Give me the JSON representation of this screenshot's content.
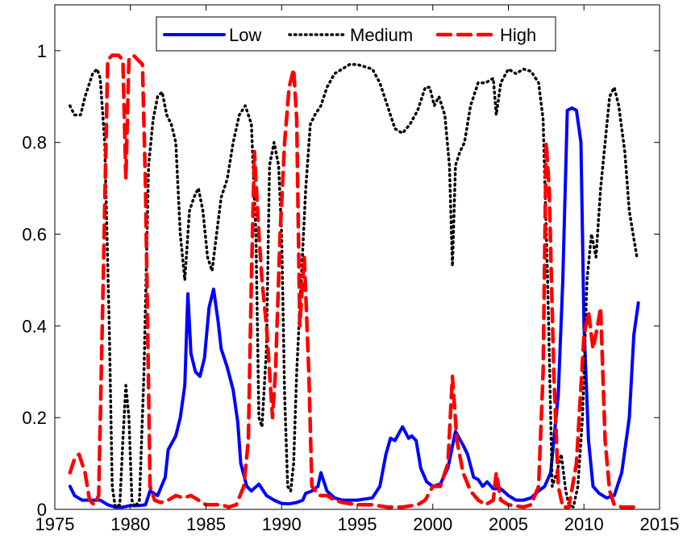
{
  "chart_data": {
    "type": "line",
    "title": "",
    "xlabel": "",
    "ylabel": "",
    "xlim": [
      1975,
      2015
    ],
    "ylim": [
      0,
      1.1
    ],
    "xticks": [
      1975,
      1980,
      1985,
      1990,
      1995,
      2000,
      2005,
      2010,
      2015
    ],
    "yticks": [
      0,
      0.2,
      0.4,
      0.6,
      0.8,
      1
    ],
    "ytick_labels": [
      "0",
      "0.2",
      "0.4",
      "0.6",
      "0.8",
      "1"
    ],
    "grid": false,
    "legend_position": "top-center",
    "series": [
      {
        "name": "Low",
        "color": "#0000ff",
        "style": "solid",
        "points": [
          [
            1976.0,
            0.05
          ],
          [
            1976.3,
            0.03
          ],
          [
            1976.8,
            0.02
          ],
          [
            1977.5,
            0.02
          ],
          [
            1978.0,
            0.02
          ],
          [
            1978.5,
            0.01
          ],
          [
            1979.0,
            0.005
          ],
          [
            1979.5,
            0.005
          ],
          [
            1980.0,
            0.008
          ],
          [
            1980.5,
            0.008
          ],
          [
            1981.0,
            0.01
          ],
          [
            1981.3,
            0.04
          ],
          [
            1981.8,
            0.03
          ],
          [
            1982.3,
            0.07
          ],
          [
            1982.5,
            0.13
          ],
          [
            1983.0,
            0.16
          ],
          [
            1983.3,
            0.2
          ],
          [
            1983.6,
            0.27
          ],
          [
            1983.8,
            0.47
          ],
          [
            1984.0,
            0.34
          ],
          [
            1984.3,
            0.3
          ],
          [
            1984.6,
            0.29
          ],
          [
            1984.9,
            0.33
          ],
          [
            1985.2,
            0.44
          ],
          [
            1985.5,
            0.48
          ],
          [
            1985.8,
            0.41
          ],
          [
            1986.0,
            0.35
          ],
          [
            1986.4,
            0.31
          ],
          [
            1986.8,
            0.26
          ],
          [
            1987.1,
            0.19
          ],
          [
            1987.3,
            0.1
          ],
          [
            1987.7,
            0.05
          ],
          [
            1988.0,
            0.04
          ],
          [
            1988.5,
            0.055
          ],
          [
            1989.0,
            0.03
          ],
          [
            1989.5,
            0.02
          ],
          [
            1990.0,
            0.013
          ],
          [
            1990.5,
            0.012
          ],
          [
            1991.0,
            0.015
          ],
          [
            1991.4,
            0.02
          ],
          [
            1991.6,
            0.035
          ],
          [
            1992.0,
            0.04
          ],
          [
            1992.4,
            0.05
          ],
          [
            1992.6,
            0.08
          ],
          [
            1993.0,
            0.04
          ],
          [
            1993.5,
            0.025
          ],
          [
            1994.0,
            0.02
          ],
          [
            1995.0,
            0.02
          ],
          [
            1996.0,
            0.025
          ],
          [
            1996.5,
            0.05
          ],
          [
            1996.9,
            0.12
          ],
          [
            1997.2,
            0.155
          ],
          [
            1997.5,
            0.15
          ],
          [
            1998.0,
            0.18
          ],
          [
            1998.4,
            0.155
          ],
          [
            1998.6,
            0.16
          ],
          [
            1998.9,
            0.15
          ],
          [
            1999.2,
            0.09
          ],
          [
            1999.6,
            0.06
          ],
          [
            2000.0,
            0.05
          ],
          [
            2000.5,
            0.055
          ],
          [
            2001.0,
            0.09
          ],
          [
            2001.5,
            0.17
          ],
          [
            2002.0,
            0.14
          ],
          [
            2002.3,
            0.12
          ],
          [
            2002.7,
            0.07
          ],
          [
            2003.0,
            0.065
          ],
          [
            2003.3,
            0.05
          ],
          [
            2003.6,
            0.06
          ],
          [
            2004.0,
            0.045
          ],
          [
            2004.5,
            0.045
          ],
          [
            2005.0,
            0.03
          ],
          [
            2005.5,
            0.02
          ],
          [
            2006.0,
            0.02
          ],
          [
            2006.5,
            0.025
          ],
          [
            2007.0,
            0.04
          ],
          [
            2007.4,
            0.05
          ],
          [
            2007.8,
            0.08
          ],
          [
            2008.0,
            0.15
          ],
          [
            2008.3,
            0.25
          ],
          [
            2008.6,
            0.5
          ],
          [
            2008.9,
            0.87
          ],
          [
            2009.2,
            0.875
          ],
          [
            2009.5,
            0.87
          ],
          [
            2009.8,
            0.8
          ],
          [
            2010.0,
            0.4
          ],
          [
            2010.3,
            0.15
          ],
          [
            2010.6,
            0.05
          ],
          [
            2011.0,
            0.035
          ],
          [
            2011.5,
            0.025
          ],
          [
            2012.0,
            0.03
          ],
          [
            2012.5,
            0.08
          ],
          [
            2013.0,
            0.2
          ],
          [
            2013.3,
            0.38
          ],
          [
            2013.6,
            0.45
          ]
        ]
      },
      {
        "name": "Medium",
        "color": "#000000",
        "style": "dotted",
        "points": [
          [
            1976.0,
            0.88
          ],
          [
            1976.3,
            0.86
          ],
          [
            1976.7,
            0.86
          ],
          [
            1977.0,
            0.9
          ],
          [
            1977.5,
            0.95
          ],
          [
            1977.8,
            0.96
          ],
          [
            1978.0,
            0.94
          ],
          [
            1978.3,
            0.8
          ],
          [
            1978.6,
            0.4
          ],
          [
            1978.8,
            0.05
          ],
          [
            1979.0,
            0.005
          ],
          [
            1979.3,
            0.01
          ],
          [
            1979.5,
            0.15
          ],
          [
            1979.7,
            0.27
          ],
          [
            1979.9,
            0.2
          ],
          [
            1980.1,
            0.02
          ],
          [
            1980.3,
            0.005
          ],
          [
            1980.6,
            0.02
          ],
          [
            1980.9,
            0.3
          ],
          [
            1981.2,
            0.75
          ],
          [
            1981.5,
            0.85
          ],
          [
            1981.8,
            0.9
          ],
          [
            1982.1,
            0.91
          ],
          [
            1982.4,
            0.86
          ],
          [
            1982.7,
            0.84
          ],
          [
            1983.0,
            0.8
          ],
          [
            1983.3,
            0.6
          ],
          [
            1983.6,
            0.5
          ],
          [
            1983.9,
            0.65
          ],
          [
            1984.2,
            0.68
          ],
          [
            1984.5,
            0.7
          ],
          [
            1984.8,
            0.65
          ],
          [
            1985.1,
            0.55
          ],
          [
            1985.4,
            0.52
          ],
          [
            1985.7,
            0.6
          ],
          [
            1986.0,
            0.68
          ],
          [
            1986.4,
            0.72
          ],
          [
            1986.8,
            0.8
          ],
          [
            1987.2,
            0.86
          ],
          [
            1987.6,
            0.88
          ],
          [
            1988.0,
            0.84
          ],
          [
            1988.3,
            0.6
          ],
          [
            1988.5,
            0.2
          ],
          [
            1988.7,
            0.18
          ],
          [
            1989.0,
            0.35
          ],
          [
            1989.2,
            0.75
          ],
          [
            1989.5,
            0.8
          ],
          [
            1989.8,
            0.75
          ],
          [
            1990.0,
            0.6
          ],
          [
            1990.2,
            0.25
          ],
          [
            1990.4,
            0.05
          ],
          [
            1990.6,
            0.04
          ],
          [
            1990.8,
            0.1
          ],
          [
            1991.0,
            0.3
          ],
          [
            1991.3,
            0.5
          ],
          [
            1991.6,
            0.7
          ],
          [
            1991.9,
            0.84
          ],
          [
            1992.2,
            0.86
          ],
          [
            1992.6,
            0.88
          ],
          [
            1993.0,
            0.92
          ],
          [
            1993.5,
            0.95
          ],
          [
            1994.0,
            0.96
          ],
          [
            1994.5,
            0.97
          ],
          [
            1995.0,
            0.97
          ],
          [
            1995.5,
            0.965
          ],
          [
            1996.0,
            0.96
          ],
          [
            1996.5,
            0.93
          ],
          [
            1997.0,
            0.88
          ],
          [
            1997.5,
            0.83
          ],
          [
            1998.0,
            0.82
          ],
          [
            1998.5,
            0.84
          ],
          [
            1999.0,
            0.87
          ],
          [
            1999.5,
            0.92
          ],
          [
            1999.8,
            0.92
          ],
          [
            2000.1,
            0.88
          ],
          [
            2000.4,
            0.9
          ],
          [
            2000.8,
            0.86
          ],
          [
            2001.1,
            0.75
          ],
          [
            2001.3,
            0.53
          ],
          [
            2001.5,
            0.75
          ],
          [
            2001.8,
            0.78
          ],
          [
            2002.1,
            0.8
          ],
          [
            2002.5,
            0.88
          ],
          [
            2003.0,
            0.93
          ],
          [
            2003.5,
            0.93
          ],
          [
            2004.0,
            0.94
          ],
          [
            2004.2,
            0.86
          ],
          [
            2004.5,
            0.93
          ],
          [
            2005.0,
            0.96
          ],
          [
            2005.5,
            0.95
          ],
          [
            2006.0,
            0.96
          ],
          [
            2006.5,
            0.955
          ],
          [
            2007.0,
            0.93
          ],
          [
            2007.3,
            0.85
          ],
          [
            2007.6,
            0.5
          ],
          [
            2007.9,
            0.05
          ],
          [
            2008.2,
            0.08
          ],
          [
            2008.5,
            0.12
          ],
          [
            2008.8,
            0.04
          ],
          [
            2009.0,
            0.01
          ],
          [
            2009.3,
            0.005
          ],
          [
            2009.6,
            0.05
          ],
          [
            2009.9,
            0.2
          ],
          [
            2010.2,
            0.5
          ],
          [
            2010.5,
            0.6
          ],
          [
            2010.8,
            0.55
          ],
          [
            2011.1,
            0.7
          ],
          [
            2011.4,
            0.8
          ],
          [
            2011.7,
            0.9
          ],
          [
            2012.0,
            0.92
          ],
          [
            2012.3,
            0.88
          ],
          [
            2012.7,
            0.78
          ],
          [
            2013.0,
            0.65
          ],
          [
            2013.5,
            0.55
          ]
        ]
      },
      {
        "name": "High",
        "color": "#ff0000",
        "style": "dashed",
        "points": [
          [
            1976.0,
            0.08
          ],
          [
            1976.3,
            0.11
          ],
          [
            1976.6,
            0.12
          ],
          [
            1977.0,
            0.08
          ],
          [
            1977.3,
            0.02
          ],
          [
            1977.6,
            0.01
          ],
          [
            1977.9,
            0.03
          ],
          [
            1978.2,
            0.5
          ],
          [
            1978.5,
            0.98
          ],
          [
            1978.8,
            0.99
          ],
          [
            1979.2,
            0.99
          ],
          [
            1979.5,
            0.98
          ],
          [
            1979.7,
            0.72
          ],
          [
            1979.9,
            0.98
          ],
          [
            1980.2,
            0.99
          ],
          [
            1980.5,
            0.98
          ],
          [
            1980.8,
            0.97
          ],
          [
            1981.0,
            0.7
          ],
          [
            1981.3,
            0.05
          ],
          [
            1981.6,
            0.02
          ],
          [
            1982.0,
            0.015
          ],
          [
            1982.5,
            0.02
          ],
          [
            1983.0,
            0.03
          ],
          [
            1983.5,
            0.025
          ],
          [
            1984.0,
            0.03
          ],
          [
            1984.5,
            0.02
          ],
          [
            1985.0,
            0.01
          ],
          [
            1986.0,
            0.01
          ],
          [
            1986.5,
            0.005
          ],
          [
            1987.0,
            0.01
          ],
          [
            1987.5,
            0.05
          ],
          [
            1987.8,
            0.15
          ],
          [
            1988.0,
            0.5
          ],
          [
            1988.2,
            0.78
          ],
          [
            1988.5,
            0.6
          ],
          [
            1988.7,
            0.5
          ],
          [
            1989.0,
            0.4
          ],
          [
            1989.2,
            0.3
          ],
          [
            1989.4,
            0.2
          ],
          [
            1989.6,
            0.3
          ],
          [
            1989.9,
            0.6
          ],
          [
            1990.2,
            0.8
          ],
          [
            1990.5,
            0.92
          ],
          [
            1990.8,
            0.96
          ],
          [
            1991.0,
            0.85
          ],
          [
            1991.2,
            0.4
          ],
          [
            1991.5,
            0.55
          ],
          [
            1991.8,
            0.3
          ],
          [
            1992.0,
            0.05
          ],
          [
            1992.5,
            0.03
          ],
          [
            1993.0,
            0.03
          ],
          [
            1993.5,
            0.02
          ],
          [
            1994.0,
            0.015
          ],
          [
            1995.0,
            0.01
          ],
          [
            1996.0,
            0.01
          ],
          [
            1997.0,
            0.005
          ],
          [
            1998.0,
            0.005
          ],
          [
            1999.0,
            0.01
          ],
          [
            1999.5,
            0.02
          ],
          [
            2000.0,
            0.05
          ],
          [
            2000.5,
            0.05
          ],
          [
            2001.0,
            0.1
          ],
          [
            2001.3,
            0.29
          ],
          [
            2001.6,
            0.15
          ],
          [
            2002.0,
            0.08
          ],
          [
            2002.5,
            0.04
          ],
          [
            2003.0,
            0.02
          ],
          [
            2003.5,
            0.01
          ],
          [
            2004.0,
            0.02
          ],
          [
            2004.2,
            0.08
          ],
          [
            2004.5,
            0.02
          ],
          [
            2005.0,
            0.01
          ],
          [
            2006.0,
            0.005
          ],
          [
            2006.5,
            0.01
          ],
          [
            2007.0,
            0.05
          ],
          [
            2007.3,
            0.3
          ],
          [
            2007.5,
            0.8
          ],
          [
            2007.7,
            0.7
          ],
          [
            2008.0,
            0.3
          ],
          [
            2008.3,
            0.05
          ],
          [
            2008.6,
            0.005
          ],
          [
            2009.0,
            0.005
          ],
          [
            2009.5,
            0.1
          ],
          [
            2010.0,
            0.38
          ],
          [
            2010.3,
            0.43
          ],
          [
            2010.6,
            0.35
          ],
          [
            2010.9,
            0.4
          ],
          [
            2011.1,
            0.44
          ],
          [
            2011.4,
            0.15
          ],
          [
            2011.7,
            0.04
          ],
          [
            2012.0,
            0.01
          ],
          [
            2012.5,
            0.005
          ],
          [
            2013.0,
            0.005
          ],
          [
            2013.5,
            0.005
          ]
        ]
      }
    ]
  }
}
